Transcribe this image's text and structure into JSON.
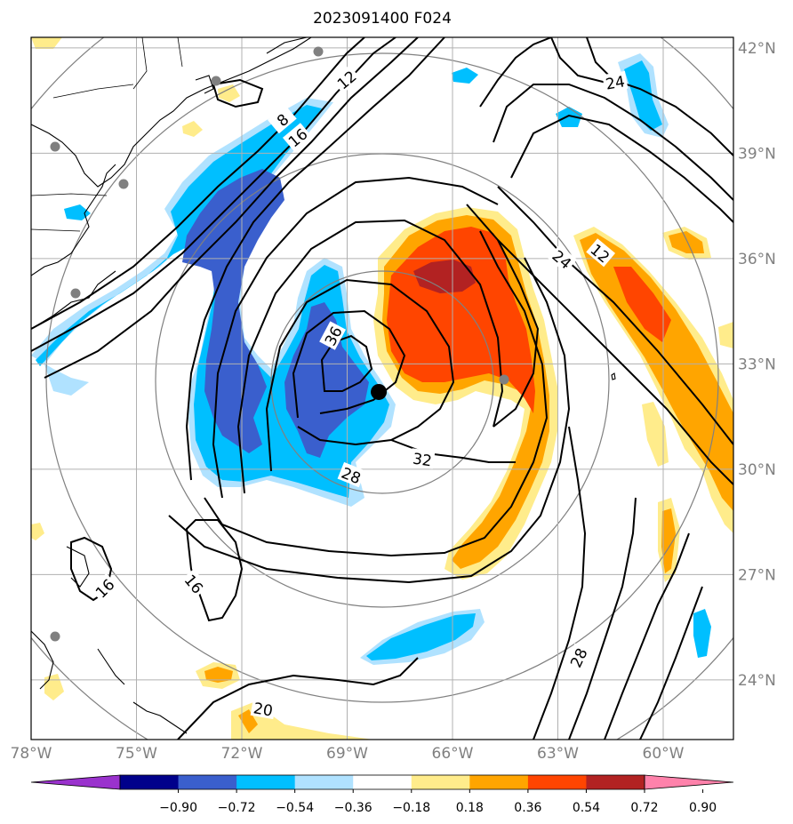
{
  "chart_data": {
    "type": "contour map",
    "title": "2023091400 F024",
    "lon_ticks": [
      "78°W",
      "75°W",
      "72°W",
      "69°W",
      "66°W",
      "63°W",
      "60°W"
    ],
    "lat_ticks": [
      "42°N",
      "39°N",
      "36°N",
      "33°N",
      "30°N",
      "27°N",
      "24°N"
    ],
    "lon_range": [
      -78,
      -58
    ],
    "lat_range": [
      22.3,
      42.3
    ],
    "contour_labels": [
      "12",
      "8",
      "16",
      "36",
      "32",
      "28",
      "24",
      "12",
      "24",
      "16",
      "16",
      "28",
      "20"
    ],
    "storm_center": {
      "lon": -68.1,
      "lat": 32.2
    },
    "colorbar": {
      "ticks": [
        "−0.90",
        "−0.72",
        "−0.54",
        "−0.36",
        "−0.18",
        "0.18",
        "0.36",
        "0.54",
        "0.72",
        "0.90"
      ],
      "colors": [
        "#9a32cd",
        "#00008b",
        "#3a5fcd",
        "#00bfff",
        "#b0e2ff",
        "#ffffff",
        "#ffec8b",
        "#ffa500",
        "#ff4500",
        "#b22222",
        "#ff82ab"
      ]
    }
  }
}
